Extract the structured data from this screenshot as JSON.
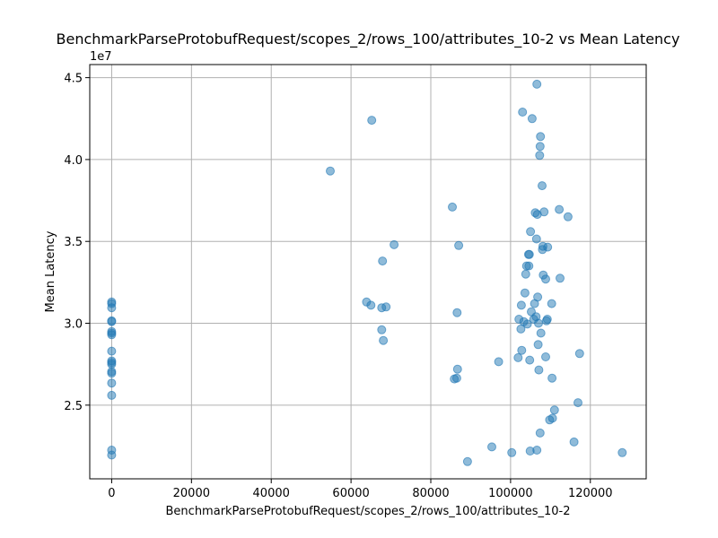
{
  "chart_data": {
    "type": "scatter",
    "title": "BenchmarkParseProtobufRequest/scopes_2/rows_100/attributes_10-2 vs Mean Latency",
    "xlabel": "BenchmarkParseProtobufRequest/scopes_2/rows_100/attributes_10-2",
    "ylabel": "Mean Latency",
    "y_multiplier_label": "1e7",
    "xlim": [
      -5500,
      134000
    ],
    "ylim": [
      20500000,
      45800000
    ],
    "x_ticks": [
      0,
      20000,
      40000,
      60000,
      80000,
      100000,
      120000
    ],
    "x_tick_labels": [
      "0",
      "20000",
      "40000",
      "60000",
      "80000",
      "100000",
      "120000"
    ],
    "y_ticks": [
      25000000,
      30000000,
      35000000,
      40000000,
      45000000
    ],
    "y_tick_labels": [
      "2.5",
      "3.0",
      "3.5",
      "4.0",
      "4.5"
    ],
    "grid": true,
    "color": "#1f77b4",
    "points": [
      {
        "x": 0,
        "y": 31300000
      },
      {
        "x": 0,
        "y": 31200000
      },
      {
        "x": 0,
        "y": 30950000
      },
      {
        "x": 0,
        "y": 30150000
      },
      {
        "x": 0,
        "y": 30100000
      },
      {
        "x": 0,
        "y": 29500000
      },
      {
        "x": 0,
        "y": 29400000
      },
      {
        "x": 0,
        "y": 29300000
      },
      {
        "x": 0,
        "y": 28300000
      },
      {
        "x": 0,
        "y": 27700000
      },
      {
        "x": 0,
        "y": 27600000
      },
      {
        "x": 0,
        "y": 27500000
      },
      {
        "x": 0,
        "y": 27050000
      },
      {
        "x": 0,
        "y": 26950000
      },
      {
        "x": 0,
        "y": 26350000
      },
      {
        "x": 0,
        "y": 25600000
      },
      {
        "x": 0,
        "y": 22250000
      },
      {
        "x": 0,
        "y": 21950000
      },
      {
        "x": 54800,
        "y": 39300000
      },
      {
        "x": 65200,
        "y": 42400000
      },
      {
        "x": 63900,
        "y": 31300000
      },
      {
        "x": 65000,
        "y": 31100000
      },
      {
        "x": 67700,
        "y": 30950000
      },
      {
        "x": 68800,
        "y": 31000000
      },
      {
        "x": 67900,
        "y": 33800000
      },
      {
        "x": 70800,
        "y": 34800000
      },
      {
        "x": 67700,
        "y": 29600000
      },
      {
        "x": 68100,
        "y": 28950000
      },
      {
        "x": 85400,
        "y": 37100000
      },
      {
        "x": 87000,
        "y": 34750000
      },
      {
        "x": 86600,
        "y": 30650000
      },
      {
        "x": 86700,
        "y": 27200000
      },
      {
        "x": 85900,
        "y": 26600000
      },
      {
        "x": 86500,
        "y": 26650000
      },
      {
        "x": 89200,
        "y": 21550000
      },
      {
        "x": 95300,
        "y": 22450000
      },
      {
        "x": 97000,
        "y": 27650000
      },
      {
        "x": 100300,
        "y": 22100000
      },
      {
        "x": 101900,
        "y": 27900000
      },
      {
        "x": 102100,
        "y": 30250000
      },
      {
        "x": 102600,
        "y": 29650000
      },
      {
        "x": 102700,
        "y": 31100000
      },
      {
        "x": 102800,
        "y": 28350000
      },
      {
        "x": 103000,
        "y": 42900000
      },
      {
        "x": 103300,
        "y": 30100000
      },
      {
        "x": 103600,
        "y": 31850000
      },
      {
        "x": 103800,
        "y": 33000000
      },
      {
        "x": 104000,
        "y": 33500000
      },
      {
        "x": 104200,
        "y": 29950000
      },
      {
        "x": 104500,
        "y": 34200000
      },
      {
        "x": 104600,
        "y": 33500000
      },
      {
        "x": 104700,
        "y": 34200000
      },
      {
        "x": 104800,
        "y": 27750000
      },
      {
        "x": 104900,
        "y": 22200000
      },
      {
        "x": 105000,
        "y": 35600000
      },
      {
        "x": 105200,
        "y": 30700000
      },
      {
        "x": 105400,
        "y": 42500000
      },
      {
        "x": 105800,
        "y": 30250000
      },
      {
        "x": 106000,
        "y": 31200000
      },
      {
        "x": 106200,
        "y": 36750000
      },
      {
        "x": 106400,
        "y": 30400000
      },
      {
        "x": 106500,
        "y": 35150000
      },
      {
        "x": 106600,
        "y": 44600000
      },
      {
        "x": 106700,
        "y": 36650000
      },
      {
        "x": 106800,
        "y": 31600000
      },
      {
        "x": 106900,
        "y": 28700000
      },
      {
        "x": 106600,
        "y": 22250000
      },
      {
        "x": 107000,
        "y": 30000000
      },
      {
        "x": 107100,
        "y": 27150000
      },
      {
        "x": 107300,
        "y": 40250000
      },
      {
        "x": 107400,
        "y": 40800000
      },
      {
        "x": 107500,
        "y": 41400000
      },
      {
        "x": 107400,
        "y": 23300000
      },
      {
        "x": 107600,
        "y": 29400000
      },
      {
        "x": 107900,
        "y": 38400000
      },
      {
        "x": 108000,
        "y": 34500000
      },
      {
        "x": 108100,
        "y": 34700000
      },
      {
        "x": 108200,
        "y": 32950000
      },
      {
        "x": 108400,
        "y": 36800000
      },
      {
        "x": 108800,
        "y": 32700000
      },
      {
        "x": 108800,
        "y": 27950000
      },
      {
        "x": 109000,
        "y": 30150000
      },
      {
        "x": 109200,
        "y": 30250000
      },
      {
        "x": 109300,
        "y": 34650000
      },
      {
        "x": 109800,
        "y": 24100000
      },
      {
        "x": 110300,
        "y": 31200000
      },
      {
        "x": 110400,
        "y": 26650000
      },
      {
        "x": 110500,
        "y": 24200000
      },
      {
        "x": 111000,
        "y": 24700000
      },
      {
        "x": 112200,
        "y": 36950000
      },
      {
        "x": 112400,
        "y": 32750000
      },
      {
        "x": 114400,
        "y": 36500000
      },
      {
        "x": 115900,
        "y": 22750000
      },
      {
        "x": 116900,
        "y": 25150000
      },
      {
        "x": 117300,
        "y": 28150000
      },
      {
        "x": 128000,
        "y": 22100000
      }
    ]
  }
}
